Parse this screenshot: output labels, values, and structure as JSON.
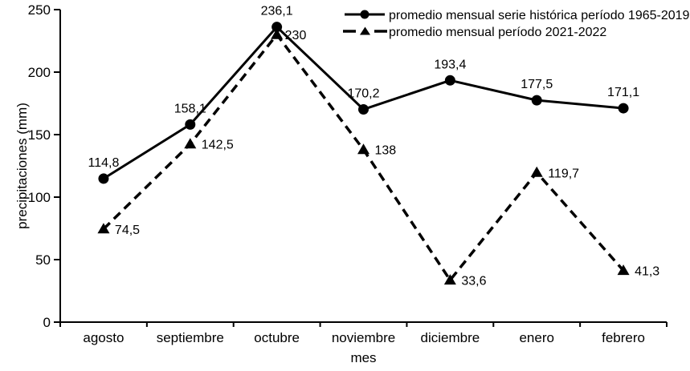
{
  "page": {
    "background": "#ffffff",
    "foreground": "#000000"
  },
  "chart_data": {
    "type": "line",
    "title": "",
    "xlabel": "mes",
    "ylabel": "precipitaciones (mm)",
    "ylim": [
      0,
      250
    ],
    "yticks": [
      0,
      50,
      100,
      150,
      200,
      250
    ],
    "categories": [
      "agosto",
      "septiembre",
      "octubre",
      "noviembre",
      "diciembre",
      "enero",
      "febrero"
    ],
    "grid": false,
    "legend_position": "top-right-inside",
    "decimal_separator": ",",
    "colors": {
      "line": "#000000",
      "text": "#000000",
      "background": "#ffffff"
    },
    "series": [
      {
        "name": "promedio mensual serie histórica período 1965-2019",
        "values": [
          114.8,
          158.1,
          236.1,
          170.2,
          193.4,
          177.5,
          171.1
        ],
        "point_labels": [
          "114,8",
          "158,1",
          "236,1",
          "170,2",
          "193,4",
          "177,5",
          "171,1"
        ],
        "line_style": "solid",
        "marker": "circle",
        "label_placement": "above",
        "label_dx": [
          0,
          0,
          0,
          0,
          0,
          0,
          0
        ]
      },
      {
        "name": "promedio mensual período 2021-2022",
        "values": [
          74.5,
          142.5,
          230,
          138,
          33.6,
          119.7,
          41.3
        ],
        "point_labels": [
          "74,5",
          "142,5",
          "230",
          "138",
          "33,6",
          "119,7",
          "41,3"
        ],
        "line_style": "dashed",
        "marker": "triangle",
        "label_placement": "right",
        "label_dx": [
          0,
          0,
          -4,
          0,
          0,
          0,
          0
        ]
      }
    ]
  }
}
